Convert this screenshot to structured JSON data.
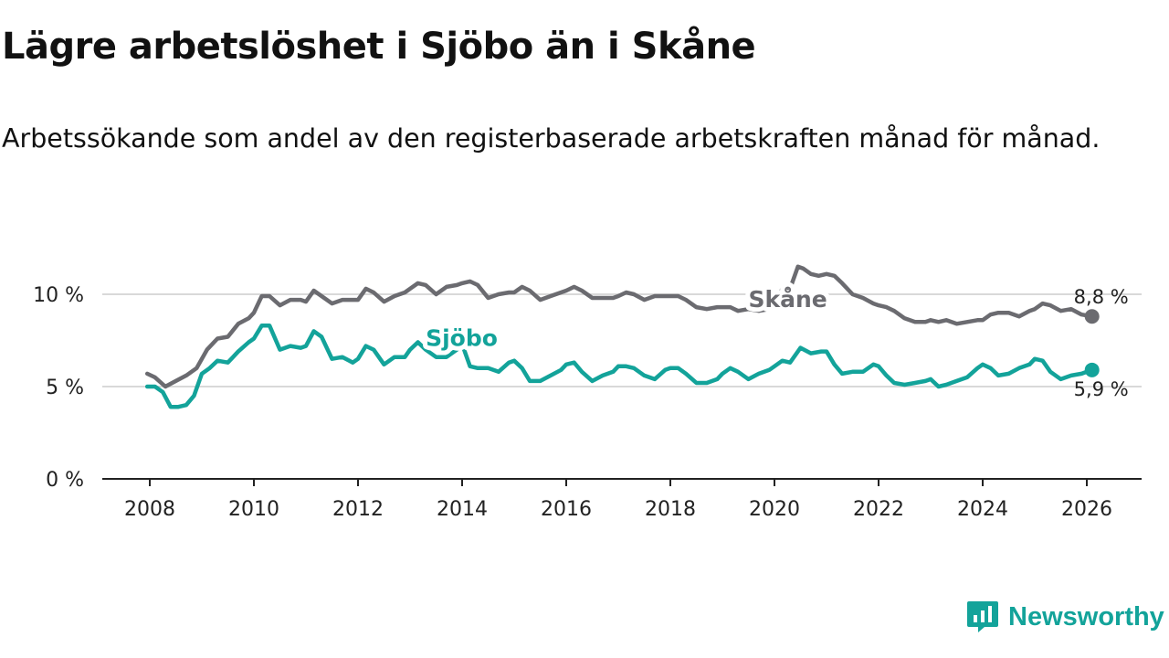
{
  "title": "Lägre arbetslöshet i Sjöbo än i Skåne",
  "subtitle": "Arbetssökande som andel av den registerbaserade arbetskraften månad för månad.",
  "brand": {
    "name": "Newsworthy",
    "icon": "newsworthy-logo-icon",
    "color": "#13a39a"
  },
  "chart_data": {
    "type": "line",
    "xlabel": "",
    "ylabel": "",
    "xlim": [
      2007.3,
      2027.0
    ],
    "ylim": [
      0,
      10
    ],
    "x_ticks": [
      2008,
      2010,
      2012,
      2014,
      2016,
      2018,
      2020,
      2022,
      2024,
      2026
    ],
    "y_ticks": [
      0,
      5,
      10
    ],
    "y_tick_labels": [
      "0 %",
      "5 %",
      "10 %"
    ],
    "grid": true,
    "series": [
      {
        "name": "Skåne",
        "color": "#6b6b70",
        "end_label": "8,8 %",
        "label_pos": [
          2019.5,
          9.3
        ],
        "x": [
          2007.95,
          2008.1,
          2008.3,
          2008.5,
          2008.7,
          2008.9,
          2009.1,
          2009.3,
          2009.5,
          2009.7,
          2009.9,
          2010.0,
          2010.15,
          2010.3,
          2010.5,
          2010.7,
          2010.9,
          2011.0,
          2011.15,
          2011.3,
          2011.5,
          2011.7,
          2011.9,
          2012.0,
          2012.15,
          2012.3,
          2012.5,
          2012.7,
          2012.9,
          2013.0,
          2013.15,
          2013.3,
          2013.5,
          2013.7,
          2013.9,
          2014.0,
          2014.15,
          2014.3,
          2014.5,
          2014.7,
          2014.9,
          2015.0,
          2015.15,
          2015.3,
          2015.5,
          2015.7,
          2015.9,
          2016.0,
          2016.15,
          2016.3,
          2016.5,
          2016.7,
          2016.9,
          2017.0,
          2017.15,
          2017.3,
          2017.5,
          2017.7,
          2017.9,
          2018.0,
          2018.15,
          2018.3,
          2018.5,
          2018.7,
          2018.9,
          2019.0,
          2019.15,
          2019.3,
          2019.5,
          2019.7,
          2019.9,
          2020.0,
          2020.15,
          2020.3,
          2020.45,
          2020.55,
          2020.7,
          2020.85,
          2021.0,
          2021.15,
          2021.3,
          2021.5,
          2021.7,
          2021.9,
          2022.0,
          2022.15,
          2022.3,
          2022.5,
          2022.7,
          2022.9,
          2023.0,
          2023.15,
          2023.3,
          2023.5,
          2023.7,
          2023.9,
          2024.0,
          2024.15,
          2024.3,
          2024.5,
          2024.7,
          2024.9,
          2025.0,
          2025.15,
          2025.3,
          2025.5,
          2025.7,
          2025.9,
          2026.1
        ],
        "values": [
          5.7,
          5.5,
          5.0,
          5.3,
          5.6,
          6.0,
          7.0,
          7.6,
          7.7,
          8.4,
          8.7,
          9.0,
          9.9,
          9.9,
          9.4,
          9.7,
          9.7,
          9.6,
          10.2,
          9.9,
          9.5,
          9.7,
          9.7,
          9.7,
          10.3,
          10.1,
          9.6,
          9.9,
          10.1,
          10.3,
          10.6,
          10.5,
          10.0,
          10.4,
          10.5,
          10.6,
          10.7,
          10.5,
          9.8,
          10.0,
          10.1,
          10.1,
          10.4,
          10.2,
          9.7,
          9.9,
          10.1,
          10.2,
          10.4,
          10.2,
          9.8,
          9.8,
          9.8,
          9.9,
          10.1,
          10.0,
          9.7,
          9.9,
          9.9,
          9.9,
          9.9,
          9.7,
          9.3,
          9.2,
          9.3,
          9.3,
          9.3,
          9.1,
          9.2,
          9.1,
          9.2,
          9.4,
          10.3,
          10.3,
          11.5,
          11.4,
          11.1,
          11.0,
          11.1,
          11.0,
          10.6,
          10.0,
          9.8,
          9.5,
          9.4,
          9.3,
          9.1,
          8.7,
          8.5,
          8.5,
          8.6,
          8.5,
          8.6,
          8.4,
          8.5,
          8.6,
          8.6,
          8.9,
          9.0,
          9.0,
          8.8,
          9.1,
          9.2,
          9.5,
          9.4,
          9.1,
          9.2,
          8.9,
          8.8
        ]
      },
      {
        "name": "Sjöbo",
        "color": "#13a39a",
        "end_label": "5,9 %",
        "label_pos": [
          2013.3,
          7.2
        ],
        "x": [
          2007.95,
          2008.1,
          2008.25,
          2008.4,
          2008.55,
          2008.7,
          2008.85,
          2009.0,
          2009.15,
          2009.3,
          2009.5,
          2009.7,
          2009.9,
          2010.0,
          2010.15,
          2010.3,
          2010.5,
          2010.7,
          2010.9,
          2011.0,
          2011.15,
          2011.3,
          2011.5,
          2011.7,
          2011.9,
          2012.0,
          2012.15,
          2012.3,
          2012.5,
          2012.7,
          2012.9,
          2013.0,
          2013.15,
          2013.3,
          2013.5,
          2013.7,
          2013.9,
          2014.0,
          2014.15,
          2014.3,
          2014.5,
          2014.7,
          2014.9,
          2015.0,
          2015.15,
          2015.3,
          2015.5,
          2015.7,
          2015.9,
          2016.0,
          2016.15,
          2016.3,
          2016.5,
          2016.7,
          2016.9,
          2017.0,
          2017.15,
          2017.3,
          2017.5,
          2017.7,
          2017.9,
          2018.0,
          2018.15,
          2018.3,
          2018.5,
          2018.7,
          2018.9,
          2019.0,
          2019.15,
          2019.3,
          2019.5,
          2019.7,
          2019.9,
          2020.0,
          2020.15,
          2020.3,
          2020.5,
          2020.7,
          2020.9,
          2021.0,
          2021.15,
          2021.3,
          2021.5,
          2021.7,
          2021.9,
          2022.0,
          2022.15,
          2022.3,
          2022.5,
          2022.7,
          2022.9,
          2023.0,
          2023.15,
          2023.3,
          2023.5,
          2023.7,
          2023.9,
          2024.0,
          2024.15,
          2024.3,
          2024.5,
          2024.7,
          2024.9,
          2025.0,
          2025.15,
          2025.3,
          2025.5,
          2025.7,
          2025.9,
          2026.1
        ],
        "values": [
          5.0,
          5.0,
          4.7,
          3.9,
          3.9,
          4.0,
          4.5,
          5.7,
          6.0,
          6.4,
          6.3,
          6.9,
          7.4,
          7.6,
          8.3,
          8.3,
          7.0,
          7.2,
          7.1,
          7.2,
          8.0,
          7.7,
          6.5,
          6.6,
          6.3,
          6.5,
          7.2,
          7.0,
          6.2,
          6.6,
          6.6,
          7.0,
          7.4,
          7.0,
          6.6,
          6.6,
          7.0,
          7.3,
          6.1,
          6.0,
          6.0,
          5.8,
          6.3,
          6.4,
          6.0,
          5.3,
          5.3,
          5.6,
          5.9,
          6.2,
          6.3,
          5.8,
          5.3,
          5.6,
          5.8,
          6.1,
          6.1,
          6.0,
          5.6,
          5.4,
          5.9,
          6.0,
          6.0,
          5.7,
          5.2,
          5.2,
          5.4,
          5.7,
          6.0,
          5.8,
          5.4,
          5.7,
          5.9,
          6.1,
          6.4,
          6.3,
          7.1,
          6.8,
          6.9,
          6.9,
          6.2,
          5.7,
          5.8,
          5.8,
          6.2,
          6.1,
          5.6,
          5.2,
          5.1,
          5.2,
          5.3,
          5.4,
          5.0,
          5.1,
          5.3,
          5.5,
          6.0,
          6.2,
          6.0,
          5.6,
          5.7,
          6.0,
          6.2,
          6.5,
          6.4,
          5.8,
          5.4,
          5.6,
          5.7,
          5.9
        ]
      }
    ]
  }
}
